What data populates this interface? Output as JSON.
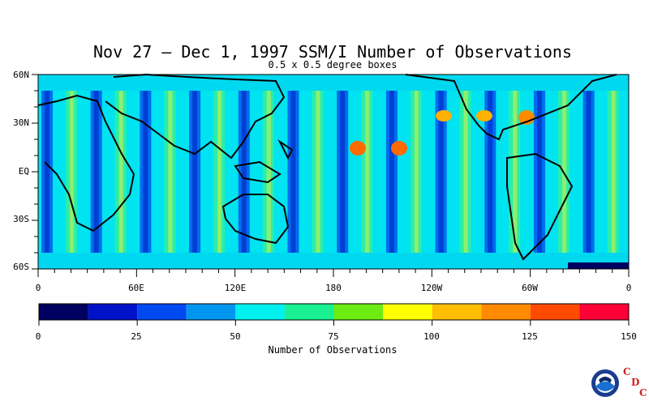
{
  "title": "Nov 27 – Dec 1, 1997 SSM/I Number of Observations",
  "subtitle": "0.5 x 0.5 degree boxes",
  "map": {
    "lat_labels": [
      "60N",
      "30N",
      "EQ",
      "30S",
      "60S"
    ],
    "lon_labels": [
      "0",
      "60E",
      "120E",
      "180",
      "120W",
      "60W",
      "0"
    ]
  },
  "colorbar": {
    "title": "Number of Observations",
    "tick_labels": [
      "0",
      "25",
      "50",
      "75",
      "100",
      "125",
      "150"
    ],
    "colors": [
      "#000060",
      "#0012c8",
      "#0048f0",
      "#0096f0",
      "#00f0f0",
      "#18f092",
      "#6cec12",
      "#ffff00",
      "#ffbe00",
      "#ff8a00",
      "#ff4a00",
      "#ff0036"
    ]
  },
  "logo": {
    "name": "noaa-logo",
    "letters": [
      "C",
      "D",
      "C"
    ]
  }
}
